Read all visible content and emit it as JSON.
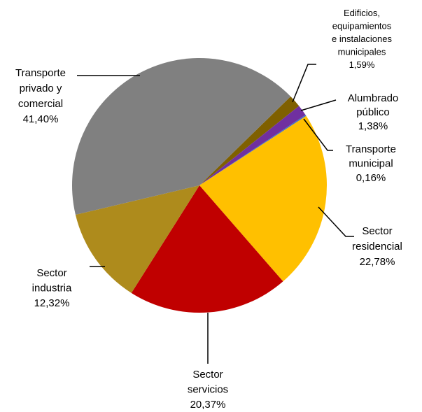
{
  "chart_data": {
    "type": "pie",
    "categories": [
      "Edificios,\nequipamientos\ne instalaciones\nmunicipales",
      "Alumbrado\npúblico",
      "Transporte\nmunicipal",
      "Sector\nresidencial",
      "Sector\nservicios",
      "Sector\nindustria",
      "Transporte\nprivado y\ncomercial"
    ],
    "values": [
      1.59,
      1.38,
      0.16,
      22.78,
      20.37,
      12.32,
      41.4
    ],
    "value_labels": [
      "1,59%",
      "1,38%",
      "0,16%",
      "22,78%",
      "20,37%",
      "12,32%",
      "41,40%"
    ],
    "colors": [
      "#7f6000",
      "#7030a0",
      "#4472c4",
      "#ffc000",
      "#c00000",
      "#ae8b1c",
      "#808080"
    ]
  }
}
